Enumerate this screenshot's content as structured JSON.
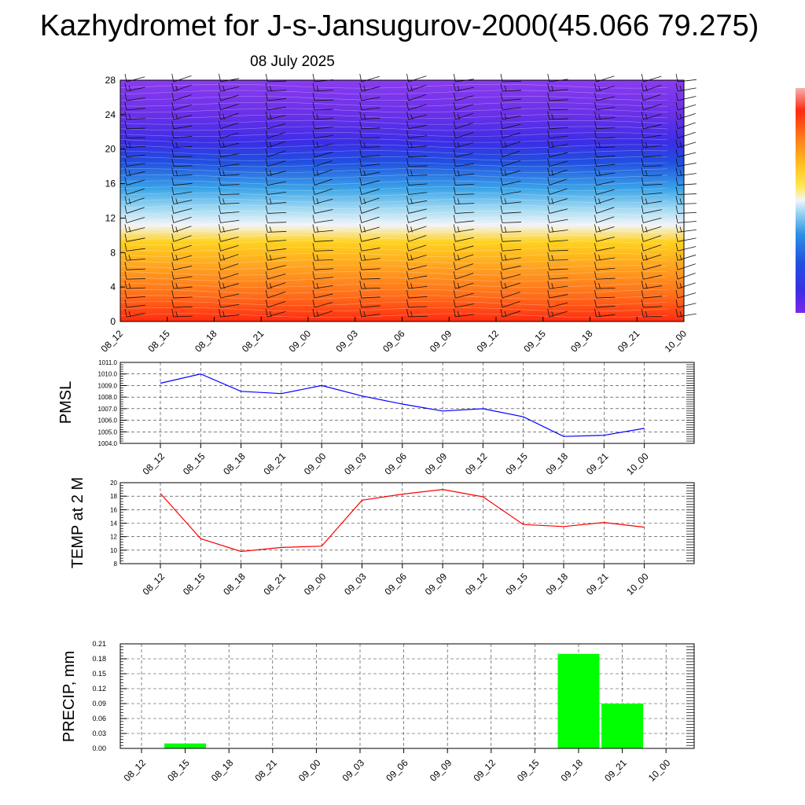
{
  "page": {
    "title": "Kazhydromet for J-s-Jansugurov-2000(45.066 79.275)",
    "date": "08 July 2025"
  },
  "time_labels": [
    "08_12",
    "08_15",
    "08_18",
    "08_21",
    "09_00",
    "09_03",
    "09_06",
    "09_09",
    "09_12",
    "09_15",
    "09_18",
    "09_21",
    "10_00"
  ],
  "colors": {
    "pmsl_line": "#0000ff",
    "temp_line": "#ff0000",
    "precip_bar": "#00ff00",
    "cross_section": [
      "#ff2a10",
      "#ff6a1a",
      "#ffa020",
      "#ffd21e",
      "#f2f4f8",
      "#9ed8f2",
      "#3aa4e8",
      "#2050e0",
      "#3a2ee6",
      "#6a30e8",
      "#8a3cf0"
    ]
  },
  "chart_data": [
    {
      "type": "heatmap",
      "y_ticks": [
        "0",
        "4",
        "8",
        "12",
        "16",
        "20",
        "24",
        "28"
      ],
      "ylim": [
        0,
        28
      ],
      "x": [
        "08_12",
        "08_15",
        "08_18",
        "08_21",
        "09_00",
        "09_03",
        "09_06",
        "09_09",
        "09_12",
        "09_15",
        "09_18",
        "09_21",
        "10_00"
      ],
      "grid": false
    },
    {
      "type": "line",
      "ylabel": "PMSL",
      "x": [
        "08_12",
        "08_15",
        "08_18",
        "08_21",
        "09_00",
        "09_03",
        "09_06",
        "09_09",
        "09_12",
        "09_15",
        "09_18",
        "09_21",
        "10_00"
      ],
      "series": [
        {
          "values": [
            1009.2,
            1010.0,
            1008.5,
            1008.3,
            1009.0,
            1008.1,
            1007.4,
            1006.8,
            1007.0,
            1006.3,
            1004.6,
            1004.7,
            1005.3
          ]
        }
      ],
      "y_ticks": [
        "1004.0",
        "1005.0",
        "1006.0",
        "1007.0",
        "1008.0",
        "1009.0",
        "1010.0",
        "1011.0"
      ],
      "ylim": [
        1004,
        1011
      ],
      "grid": true
    },
    {
      "type": "line",
      "ylabel": "TEMP at 2 M",
      "x": [
        "08_12",
        "08_15",
        "08_18",
        "08_21",
        "09_00",
        "09_03",
        "09_06",
        "09_09",
        "09_12",
        "09_15",
        "09_18",
        "09_21",
        "10_00"
      ],
      "series": [
        {
          "values": [
            18.4,
            11.7,
            9.8,
            10.4,
            10.6,
            17.4,
            18.3,
            19.0,
            17.9,
            13.8,
            13.5,
            14.1,
            13.4
          ]
        }
      ],
      "y_ticks": [
        "8",
        "10",
        "12",
        "14",
        "16",
        "18",
        "20"
      ],
      "ylim": [
        8,
        20
      ],
      "grid": true
    },
    {
      "type": "bar",
      "ylabel": "PRECIP, mm",
      "categories": [
        "08_12",
        "08_15",
        "08_18",
        "08_21",
        "09_00",
        "09_03",
        "09_06",
        "09_09",
        "09_12",
        "09_15",
        "09_18",
        "09_21",
        "10_00"
      ],
      "values": [
        0,
        0.01,
        0,
        0,
        0,
        0,
        0,
        0,
        0,
        0,
        0.19,
        0.09,
        0
      ],
      "y_ticks": [
        "0.00",
        "0.03",
        "0.06",
        "0.09",
        "0.12",
        "0.15",
        "0.18",
        "0.21"
      ],
      "ylim": [
        0,
        0.21
      ],
      "grid": true
    }
  ]
}
